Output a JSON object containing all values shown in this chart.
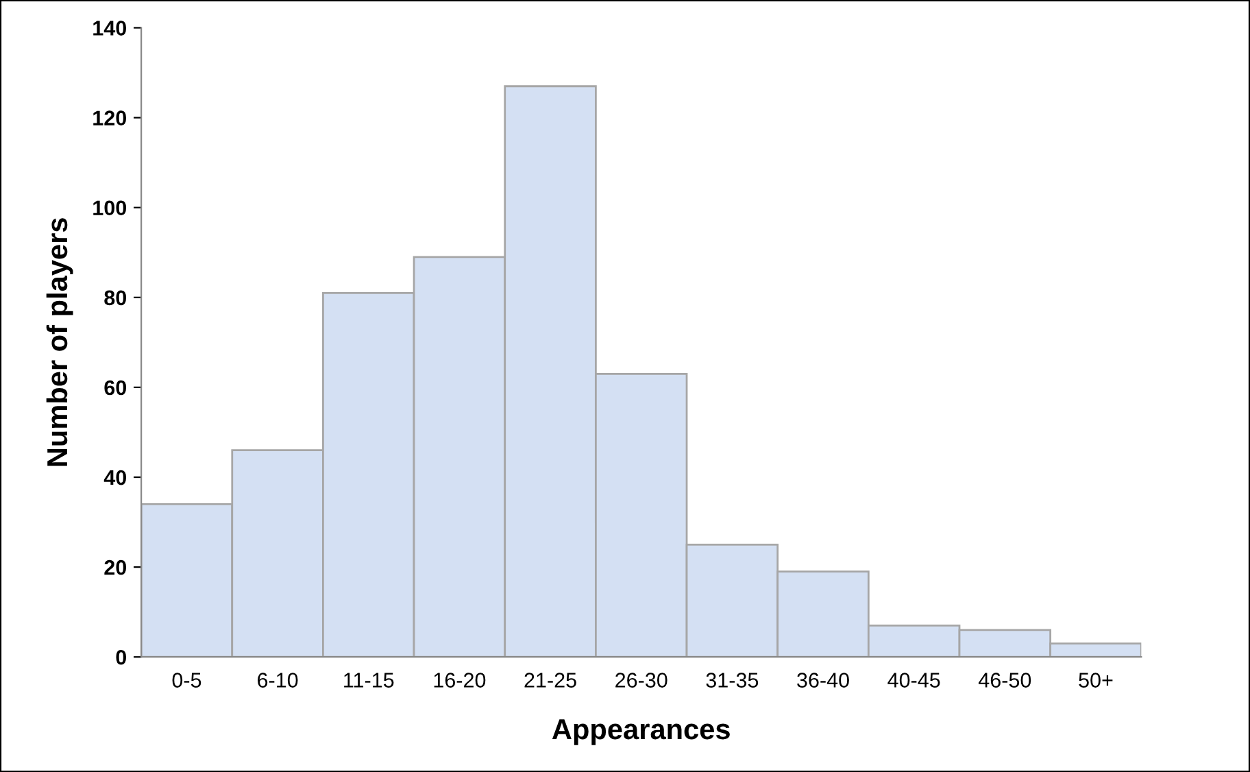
{
  "chart_data": {
    "type": "bar",
    "xlabel": "Appearances",
    "ylabel": "Number of players",
    "categories": [
      "0-5",
      "6-10",
      "11-15",
      "16-20",
      "21-25",
      "26-30",
      "31-35",
      "36-40",
      "40-45",
      "46-50",
      "50+"
    ],
    "values": [
      34,
      46,
      81,
      89,
      127,
      63,
      25,
      19,
      7,
      6,
      3
    ],
    "color": "#d4e0f3",
    "ylim": [
      0,
      140
    ],
    "yticks": [
      0,
      20,
      40,
      60,
      80,
      100,
      120,
      140
    ],
    "grid": false,
    "legend": false
  }
}
